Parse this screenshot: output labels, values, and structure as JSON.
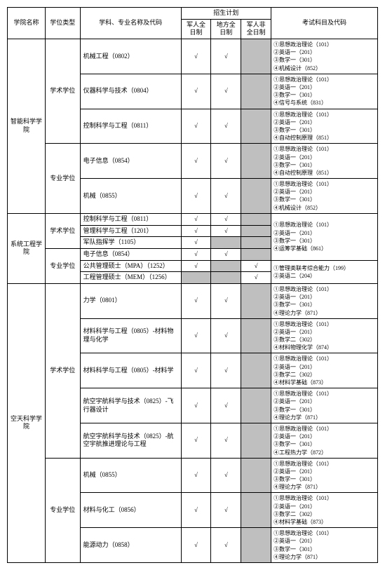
{
  "headers": {
    "college": "学院名称",
    "degree": "学位类型",
    "major": "学科、专业名称及代码",
    "plan": "招生计划",
    "mil_full": "军人全日制",
    "local_full": "地方全日制",
    "mil_part": "军人非全日制",
    "exam": "考试科目及代码"
  },
  "check": "√",
  "colleges": {
    "c1": "智能科学学院",
    "c2": "系统工程学院",
    "c3": "空天科学学院"
  },
  "degree": {
    "acad": "学术学位",
    "prof": "专业学位"
  },
  "majors": {
    "m1": "机械工程（0802）",
    "m2": "仪器科学与技术（0804）",
    "m3": "控制科学与工程（0811）",
    "m4": "电子信息（0854）",
    "m5": "机械（0855）",
    "m6": "控制科学与工程（0811）",
    "m7": "管理科学与工程（1201）",
    "m8": "军队指挥学（1105）",
    "m9": "电子信息（0854）",
    "m10": "公共管理硕士（MPA）（1252）",
    "m11": "工程管理硕士（MEM）（1256）",
    "m12": "力学（0801）",
    "m13": "材料科学与工程（0805）-材料物理与化学",
    "m14": "材料科学与工程（0805）-材料学",
    "m15": "航空宇航科学与技术（0825）-飞行器设计",
    "m16": "航空宇航科学与技术（0825）-航空宇航推进理论与工程",
    "m17": "机械（0855）",
    "m18": "材料与化工（0856）",
    "m19": "能源动力（0858）"
  },
  "exams": {
    "e1": "①思想政治理论（101）\n②英语一（201）\n③数学一（301）\n④机械设计（852）",
    "e2": "①思想政治理论（101）\n②英语一（201）\n③数学一（301）\n④信号与系统（831）",
    "e3": "①思想政治理论（101）\n②英语一（201）\n③数学一（301）\n④自动控制原理（851）",
    "e4": "①思想政治理论（101）\n②英语一（201）\n③数学一（301）\n④自动控制原理（851）",
    "e5": "①思想政治理论（101）\n②英语一（201）\n③数学一（301）\n④机械设计（852）",
    "e6": "①思想政治理论（101）\n②英语一（201）\n③数学一（301）\n④运筹学基础（861）",
    "e7": "①管理类联考综合能力（199）\n②英语二（204）",
    "e8": "①思想政治理论（101）\n②英语一（201）\n③数学一（301）\n④理论力学（871）",
    "e9": "①思想政治理论（101）\n②英语一（201）\n③数学二（302）\n④材料物理化学（874）",
    "e10": "①思想政治理论（101）\n②英语一（201）\n③数学二（302）\n④材料学基础（873）",
    "e11": "①思想政治理论（101）\n②英语一（201）\n③数学一（301）\n④理论力学（871）",
    "e12": "①思想政治理论（101）\n②英语一（201）\n③数学一（301）\n④工程热力学（872）",
    "e13": "①思想政治理论（101）\n②英语一（201）\n③数学一（301）\n④理论力学（871）",
    "e14": "①思想政治理论（101）\n②英语一（201）\n③数学二（302）\n④材料学基础（873）",
    "e15": "①思想政治理论（101）\n②英语一（201）\n③数学一（301）\n④理论力学（871）"
  }
}
